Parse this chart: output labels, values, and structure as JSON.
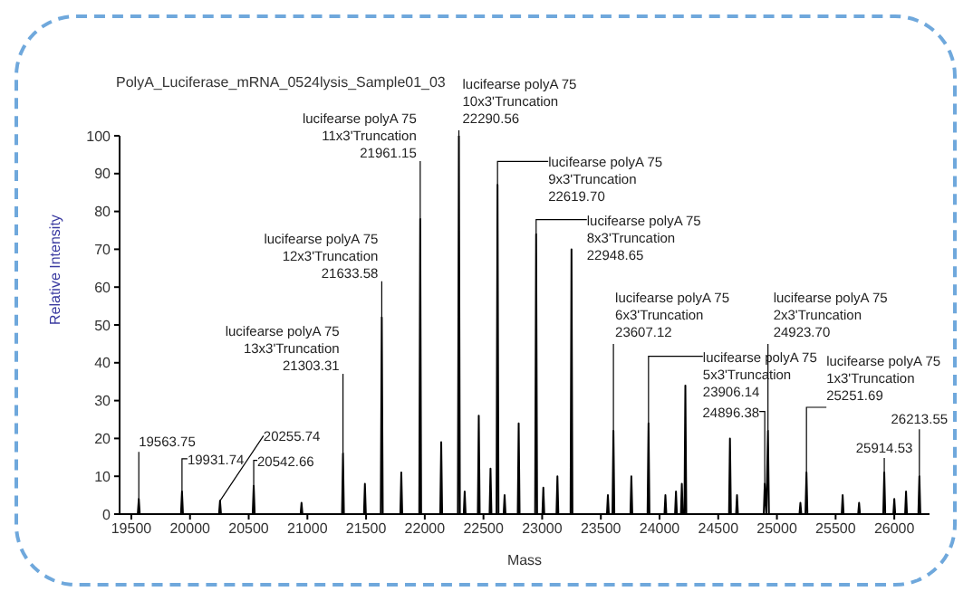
{
  "chart_data": {
    "type": "line",
    "title": "PolyA_Luciferase_mRNA_0524lysis_Sample01_03",
    "xlabel": "Mass",
    "ylabel": "Relative Intensity",
    "color": "#000000",
    "marker": "none",
    "line_style": "solid",
    "xlim": [
      19400,
      26300
    ],
    "xticks": [
      19500,
      20000,
      20500,
      21000,
      21500,
      22000,
      22500,
      23000,
      23500,
      24000,
      24500,
      25000,
      25500,
      26000
    ],
    "ylim": [
      0,
      100
    ],
    "yticks": [
      0,
      10,
      20,
      30,
      40,
      50,
      60,
      70,
      80,
      90,
      100
    ],
    "x": [
      19555,
      19563.75,
      19572,
      19923,
      19931.74,
      19940,
      20247,
      20255.74,
      20264,
      20534,
      20542.66,
      20551,
      20942,
      20950,
      20958,
      21295,
      21303.31,
      21311,
      21482,
      21490,
      21498,
      21625,
      21633.58,
      21642,
      21792,
      21800,
      21808,
      21953,
      21961.15,
      21969,
      22132,
      22140,
      22148,
      22282,
      22290.56,
      22299,
      22332,
      22340,
      22348,
      22452,
      22460,
      22468,
      22552,
      22560,
      22568,
      22611,
      22619.7,
      22628,
      22672,
      22680,
      22688,
      22792,
      22800,
      22808,
      22940,
      22948.65,
      22957,
      23002,
      23010,
      23018,
      23122,
      23130,
      23138,
      23242,
      23250,
      23258,
      23552,
      23560,
      23568,
      23599,
      23607.12,
      23615,
      23752,
      23760,
      23768,
      23898,
      23906.14,
      23914,
      24042,
      24050,
      24058,
      24132,
      24140,
      24148,
      24182,
      24190,
      24198,
      24212,
      24220,
      24228,
      24592,
      24600,
      24608,
      24652,
      24660,
      24668,
      24888,
      24896.38,
      24910,
      24923.7,
      24932,
      25192,
      25200,
      25208,
      25243,
      25251.69,
      25260,
      25552,
      25560,
      25568,
      25692,
      25700,
      25708,
      25906,
      25914.53,
      25923,
      25992,
      26000,
      26008,
      26092,
      26100,
      26108,
      26205,
      26213.55,
      26222
    ],
    "values": [
      0,
      4,
      0,
      0,
      6,
      0,
      0,
      3.5,
      0,
      0,
      7.5,
      0,
      0,
      3,
      0,
      0,
      16,
      0,
      0,
      8,
      0,
      0,
      52,
      0,
      0,
      11,
      0,
      0,
      78,
      0,
      0,
      19,
      0,
      0,
      100,
      0,
      0,
      6,
      0,
      0,
      26,
      0,
      0,
      12,
      0,
      0,
      87,
      0,
      0,
      5,
      0,
      0,
      24,
      0,
      0,
      74,
      0,
      0,
      7,
      0,
      0,
      10,
      0,
      0,
      70,
      0,
      0,
      5,
      0,
      0,
      22,
      0,
      0,
      10,
      0,
      0,
      24,
      0,
      0,
      5,
      0,
      0,
      6,
      0,
      0,
      8,
      0,
      0,
      34,
      0,
      0,
      20,
      0,
      0,
      5,
      0,
      0,
      8,
      0,
      22,
      0,
      0,
      3,
      0,
      0,
      11,
      0,
      0,
      5,
      0,
      0,
      3,
      0,
      0,
      11,
      0,
      0,
      4,
      0,
      0,
      6,
      0,
      0,
      10,
      0
    ],
    "annotations": [
      {
        "text": "lucifearse polyA 75\n10x3'Truncation\n22290.56",
        "x": 22290.56,
        "y": 100
      },
      {
        "text": "lucifearse polyA 75\n11x3'Truncation\n21961.15",
        "x": 21961.15,
        "y": 78
      },
      {
        "text": "lucifearse polyA 75\n12x3'Truncation\n21633.58",
        "x": 21633.58,
        "y": 52
      },
      {
        "text": "lucifearse polyA 75\n13x3'Truncation\n21303.31",
        "x": 21303.31,
        "y": 16
      },
      {
        "text": "lucifearse polyA 75\n9x3'Truncation\n22619.70",
        "x": 22619.7,
        "y": 87
      },
      {
        "text": "lucifearse polyA 75\n8x3'Truncation\n22948.65",
        "x": 22948.65,
        "y": 74
      },
      {
        "text": "lucifearse polyA 75\n6x3'Truncation\n23607.12",
        "x": 23607.12,
        "y": 22
      },
      {
        "text": "lucifearse polyA 75\n5x3'Truncation\n23906.14",
        "x": 23906.14,
        "y": 24
      },
      {
        "text": "lucifearse polyA 75\n2x3'Truncation\n24923.70",
        "x": 24923.7,
        "y": 22
      },
      {
        "text": "lucifearse polyA 75\n1x3'Truncation\n25251.69",
        "x": 25251.69,
        "y": 11
      },
      {
        "text": "24896.38",
        "x": 24896.38,
        "y": 8
      },
      {
        "text": "26213.55",
        "x": 26213.55,
        "y": 10
      },
      {
        "text": "25914.53",
        "x": 25914.53,
        "y": 11
      },
      {
        "text": "20542.66",
        "x": 20542.66,
        "y": 7.5
      },
      {
        "text": "20255.74",
        "x": 20255.74,
        "y": 3.5
      },
      {
        "text": "19931.74",
        "x": 19931.74,
        "y": 6
      },
      {
        "text": "19563.75",
        "x": 19563.75,
        "y": 4
      }
    ]
  }
}
